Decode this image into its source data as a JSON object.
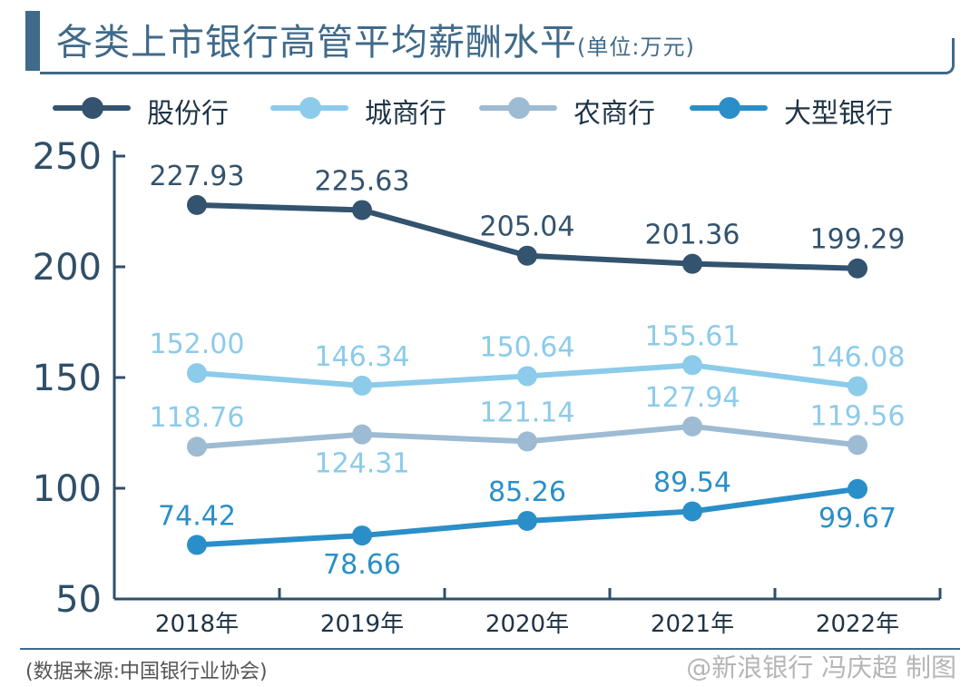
{
  "header": {
    "title": "各类上市银行高管平均薪酬水平",
    "unit": "(单位:万元)"
  },
  "colors": {
    "accent": "#3f6a8a",
    "axis": "#2f4f68"
  },
  "chart_data": {
    "type": "line",
    "categories": [
      "2018年",
      "2019年",
      "2020年",
      "2021年",
      "2022年"
    ],
    "ylim": [
      50,
      250
    ],
    "yticks": [
      50,
      100,
      150,
      200,
      250
    ],
    "grid": false,
    "legend_position": "top",
    "series": [
      {
        "name": "股份行",
        "color": "#33536e",
        "values": [
          227.93,
          225.63,
          205.04,
          201.36,
          199.29
        ],
        "labels": [
          "227.93",
          "225.63",
          "205.04",
          "201.36",
          "199.29"
        ],
        "label_side": [
          "above",
          "above",
          "above",
          "above",
          "above"
        ]
      },
      {
        "name": "城商行",
        "color": "#8ccbea",
        "values": [
          152.0,
          146.34,
          150.64,
          155.61,
          146.08
        ],
        "labels": [
          "152.00",
          "146.34",
          "150.64",
          "155.61",
          "146.08"
        ],
        "label_side": [
          "above",
          "above",
          "above",
          "above",
          "above"
        ]
      },
      {
        "name": "农商行",
        "color": "#9dbbd2",
        "values": [
          118.76,
          124.31,
          121.14,
          127.94,
          119.56
        ],
        "labels": [
          "118.76",
          "124.31",
          "121.14",
          "127.94",
          "119.56"
        ],
        "label_side": [
          "above",
          "below",
          "above",
          "above",
          "above"
        ],
        "label_color": "#8ccbea"
      },
      {
        "name": "大型银行",
        "color": "#2a8fc8",
        "values": [
          74.42,
          78.66,
          85.26,
          89.54,
          99.67
        ],
        "labels": [
          "74.42",
          "78.66",
          "85.26",
          "89.54",
          "99.67"
        ],
        "label_side": [
          "above",
          "below",
          "above",
          "above",
          "below"
        ]
      }
    ]
  },
  "footer": {
    "source": "(数据来源:中国银行业协会)",
    "watermark": "@新浪银行 冯庆超 制图"
  }
}
